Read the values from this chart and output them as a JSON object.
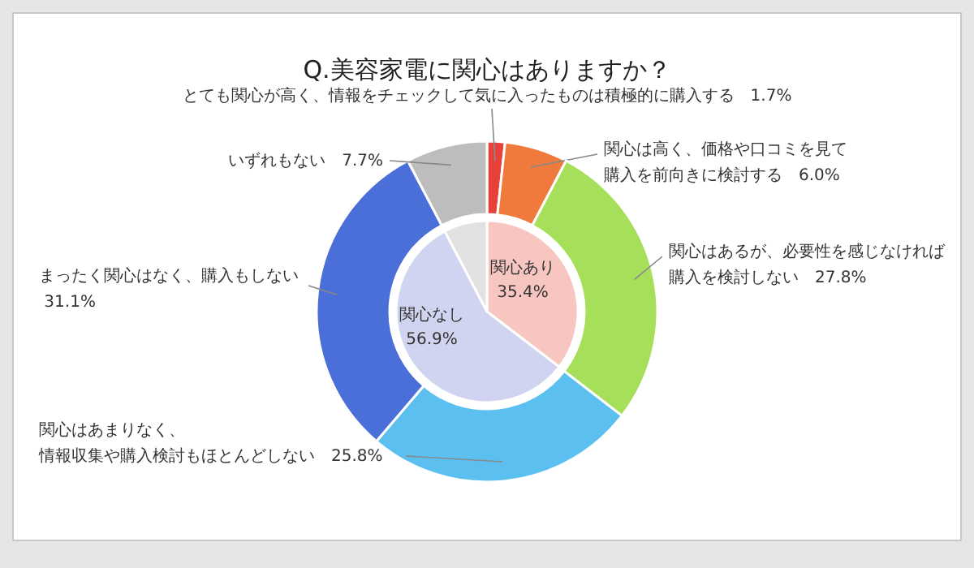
{
  "chart_data": [
    {
      "type": "donut",
      "title": "Q.美容家電に関心はありますか？",
      "categories": [
        "とても関心が高く、情報をチェックして気に入ったものは積極的に購入する",
        "関心は高く、価格や口コミを見て購入を前向きに検討する",
        "関心はあるが、必要性を感じなければ購入を検討しない",
        "関心はあまりなく、情報収集や購入検討もほとんどしない",
        "まったく関心はなく、購入もしない",
        "いずれもない"
      ],
      "values": [
        1.7,
        6.0,
        27.8,
        25.8,
        31.1,
        7.7
      ],
      "colors": [
        "#e8413c",
        "#f07a3c",
        "#a6e05a",
        "#5bc0f0",
        "#4a6fd8",
        "#bdbdbd"
      ],
      "value_labels": [
        "1.7%",
        "6.0%",
        "27.8%",
        "25.8%",
        "31.1%",
        "7.7%"
      ]
    },
    {
      "type": "pie",
      "categories": [
        "関心あり",
        "関心なし",
        null
      ],
      "values": [
        35.4,
        56.9,
        7.7
      ],
      "colors": [
        "#f7c6c0",
        "#d0d4f0",
        "#e2e2e2"
      ],
      "value_labels": [
        "35.4%",
        "56.9%",
        null
      ]
    }
  ]
}
